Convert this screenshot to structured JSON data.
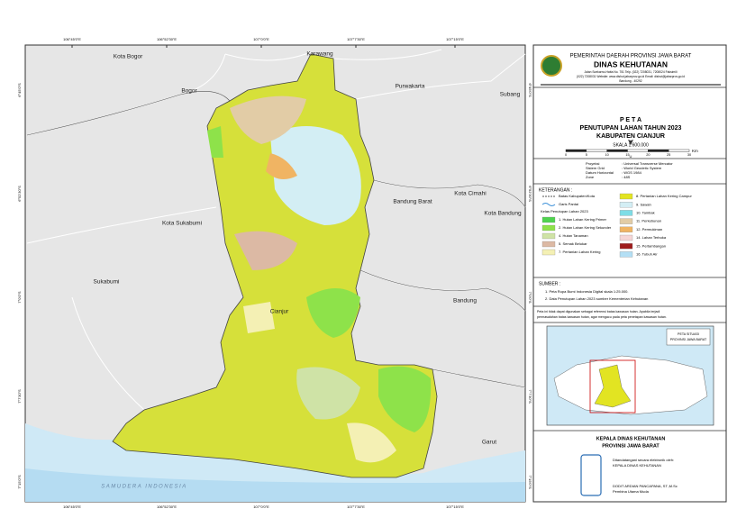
{
  "map": {
    "coords_top": [
      "106°45'0\"E",
      "106°52'30\"E",
      "107°0'0\"E",
      "107°7'30\"E",
      "107°15'0\"E"
    ],
    "coords_left": [
      "6°45'0\"S",
      "6°52'30\"S",
      "7°0'0\"S",
      "7°7'30\"S",
      "7°15'0\"S"
    ],
    "places": [
      "Kota Bogor",
      "Karawang",
      "Bogor",
      "Purwakarta",
      "Subang",
      "Bandung Barat",
      "Kota Cimahi",
      "Kota Bandung",
      "Kota Sukabumi",
      "Sukabumi",
      "Cianjur",
      "Bandung",
      "Garut"
    ],
    "sea": "SAMUDERA INDONESIA"
  },
  "header": {
    "org": "PEMERINTAH DAERAH PROVINSI JAWA BARAT",
    "dept": "DINAS KEHUTANAN",
    "address1": "Jalan Soekarno-Hatta No. 751 Telp. (022) 7208031, 7208024 Faksimili",
    "address2": "(022) 7208031 Website: www.dishut.jabarprov.go.id Email: dishut@jabarprov.go.id",
    "address3": "Bandung - 40292"
  },
  "title": {
    "label": "P E T A",
    "main": "PENUTUPAN LAHAN TAHUN 2023",
    "region": "KABUPATEN CIANJUR"
  },
  "scale": {
    "label": "SKALA 1:600.000",
    "ticks": [
      0,
      5,
      10,
      15,
      20,
      25,
      30
    ],
    "unit": "Km",
    "north": "U"
  },
  "projection": [
    [
      "Proyeksi",
      ": Universal Transverse Mercator"
    ],
    [
      "Sistem Grid",
      ": World Geodetic System"
    ],
    [
      "Datum Horizontal",
      ": WGS 1984"
    ],
    [
      "Zone",
      ": 48S"
    ]
  ],
  "legend": {
    "title": "KETERANGAN :",
    "boundary": "Batas Kabupaten/Kota",
    "coast": "Garis Pantai",
    "class_title": "Kelas Penutupan Lahan 2023",
    "items": [
      {
        "label": "1. Hutan Lahan Kering Primer",
        "color": "#4fd34f"
      },
      {
        "label": "2. Hutan Lahan Kering Sekunder",
        "color": "#8ee24a"
      },
      {
        "label": "4. Hutan Tanaman",
        "color": "#cfe3a6"
      },
      {
        "label": "5. Semak Belukar",
        "color": "#dcb9a4"
      },
      {
        "label": "7. Pertanian Lahan Kering",
        "color": "#f4f0b4"
      },
      {
        "label": "8. Pertanian Lahan Kering Campur",
        "color": "#e2e422"
      },
      {
        "label": "9. Sawah",
        "color": "#d3eef4"
      },
      {
        "label": "10. Tambak",
        "color": "#7edde6"
      },
      {
        "label": "11. Perkebunan",
        "color": "#e2cca6"
      },
      {
        "label": "12. Permukiman",
        "color": "#f0b463"
      },
      {
        "label": "14. Lahan Terbuka",
        "color": "#f6d6d6"
      },
      {
        "label": "15. Pertambangan",
        "color": "#9e1c1c"
      },
      {
        "label": "16. Tubuh Air",
        "color": "#b3dff5"
      }
    ]
  },
  "sources": {
    "title": "SUMBER :",
    "items": [
      "1.   Peta Rupa Bumi Indonesia Digital skala 1:25.000.",
      "2.   Data Penutupan Lahan 2023 sumber Kementerian Kehutanan"
    ]
  },
  "note1": "Peta ini tidak dapat digunakan sebagai referensi batas kawasan hutan. Apabila terjadi",
  "note2": "permasalahan batas kawasan hutan, agar mengacu pada peta penetapan kawasan hutan.",
  "inset": {
    "title1": "PETA SITUASI",
    "title2": "PROVINSI JAWA BARAT"
  },
  "signature": {
    "office": "KEPALA DINAS KEHUTANAN",
    "province": "PROVINSI JAWA BARAT",
    "signed": "Ditandatangani secara elektronik oleh:",
    "role": "KEPALA DINAS KEHUTANAN",
    "name": "DODIT ARDIAN PANCAPANA, ST.,M.Sc",
    "rank": "Pembina Utama Muda"
  }
}
